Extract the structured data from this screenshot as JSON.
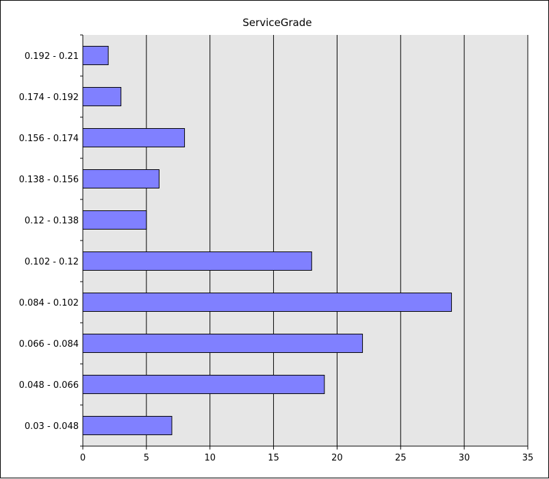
{
  "chart_data": {
    "type": "bar",
    "orientation": "horizontal",
    "title": "ServiceGrade",
    "xlabel": "",
    "ylabel": "",
    "categories": [
      "0.03 - 0.048",
      "0.048 - 0.066",
      "0.066 - 0.084",
      "0.084 - 0.102",
      "0.102 - 0.12",
      "0.12 - 0.138",
      "0.138 - 0.156",
      "0.156 - 0.174",
      "0.174 - 0.192",
      "0.192 - 0.21"
    ],
    "values": [
      7,
      19,
      22,
      29,
      18,
      5,
      6,
      8,
      3,
      2
    ],
    "xlim": [
      0,
      35
    ],
    "xticks": [
      "0",
      "5",
      "10",
      "15",
      "20",
      "25",
      "30",
      "35"
    ],
    "grid": "vertical",
    "legend": "none",
    "colors": {
      "bar_fill": "#8080ff",
      "bar_stroke": "#000000",
      "plot_background": "#e6e6e6",
      "grid_line": "#000000"
    }
  }
}
